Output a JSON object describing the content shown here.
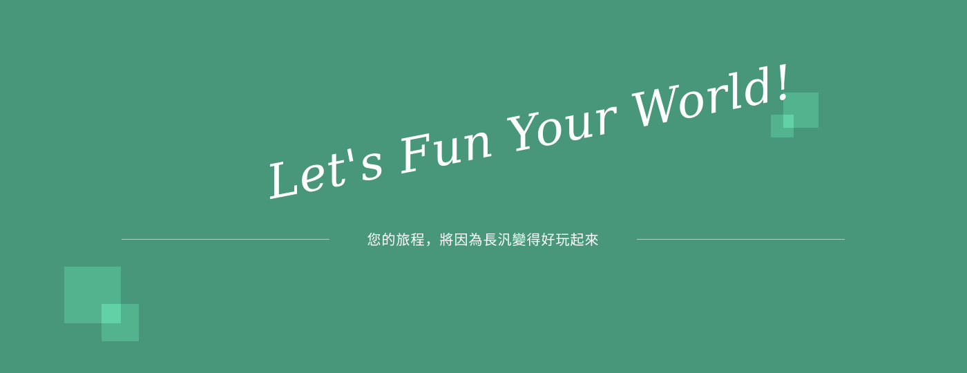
{
  "banner": {
    "slogan": "Let's Fun Your World!",
    "tagline": "您的旅程，將因為長汎變得好玩起來"
  },
  "colors": {
    "background": "#48977a",
    "square": "#53b38e",
    "square_overlap": "#62d1a6",
    "text": "#ffffff",
    "rule": "#a7d3c1"
  }
}
